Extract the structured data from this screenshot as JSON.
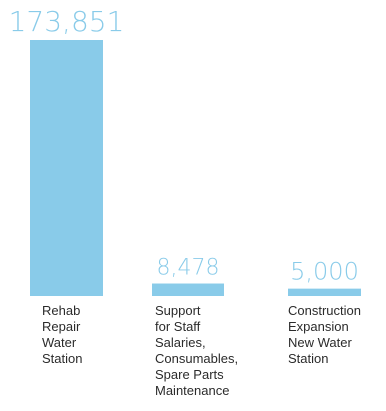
{
  "chart_data": {
    "type": "bar",
    "categories": [
      [
        "Rehab",
        "Repair",
        "Water",
        "Station"
      ],
      [
        "Support",
        "for Staff",
        "Salaries,",
        "Consumables,",
        "Spare Parts",
        "Maintenance"
      ],
      [
        "Construction",
        "Expansion",
        "New Water",
        "Station"
      ]
    ],
    "values": [
      173851,
      8478,
      5000
    ],
    "value_labels": [
      "173,851",
      "8,478",
      "5,000"
    ],
    "title": "",
    "xlabel": "",
    "ylabel": "",
    "ylim": [
      0,
      173851
    ],
    "grid": false,
    "legend": "none",
    "colors": {
      "bar": "#89cbe9",
      "value_label": "#89cbe9",
      "category_label": "#2b2b2b"
    }
  }
}
